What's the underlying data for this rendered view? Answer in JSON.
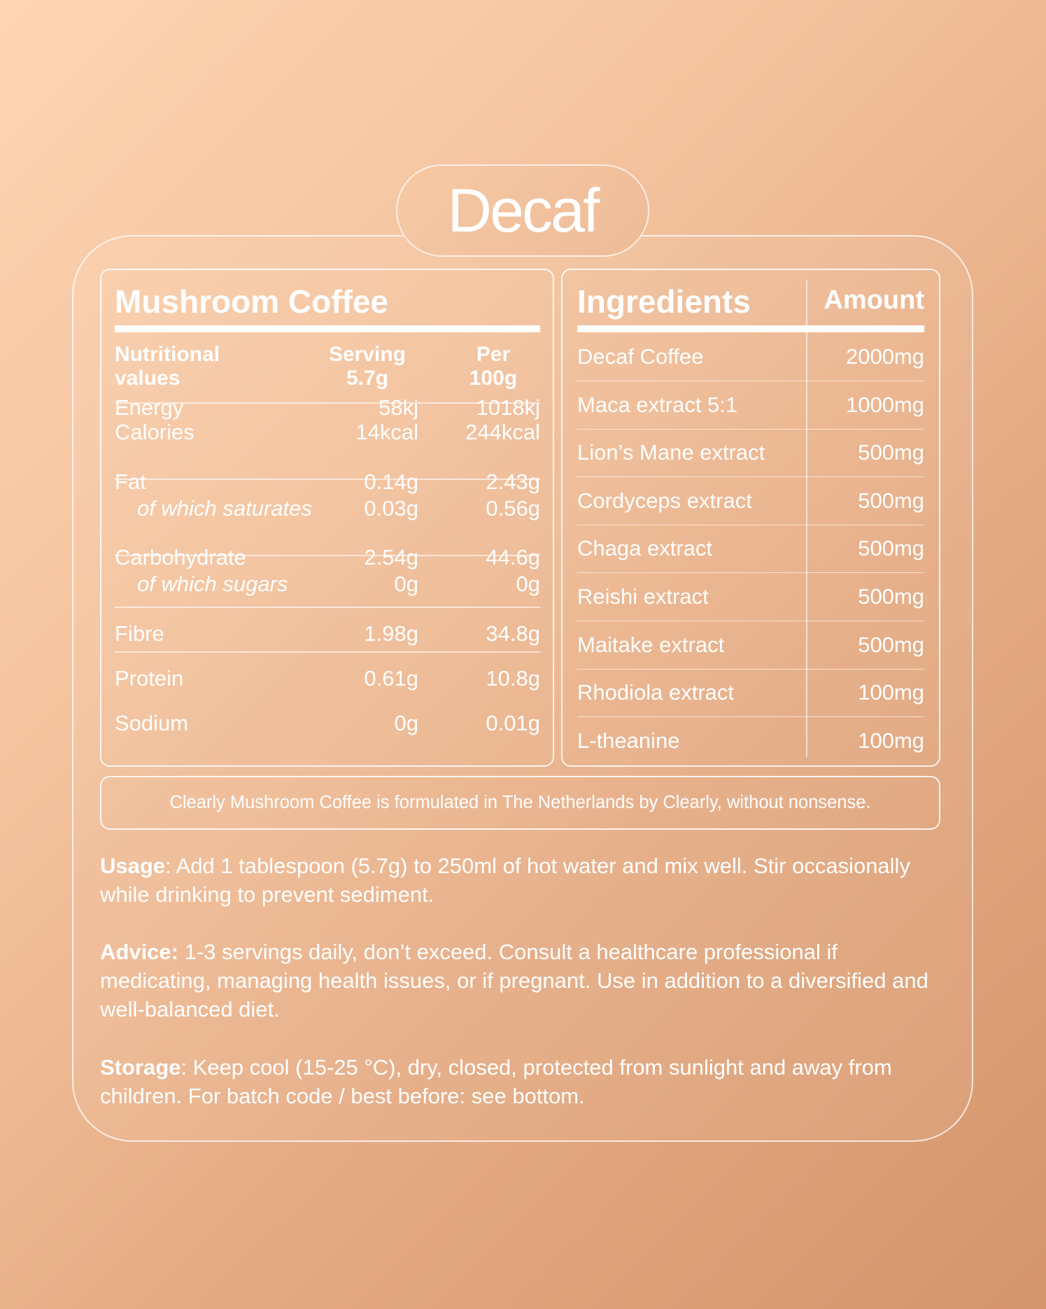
{
  "title": "Decaf",
  "nutrition": {
    "title": "Mushroom Coffee",
    "headers": {
      "name": "Nutritional values",
      "serving": "Serving 5.7g",
      "per100": "Per 100g"
    },
    "groups": [
      [
        {
          "name": "Energy",
          "serving": "58kj",
          "per100": "1018kj"
        },
        {
          "name": "Calories",
          "serving": "14kcal",
          "per100": "244kcal"
        }
      ],
      [
        {
          "name": "Fat",
          "serving": "0.14g",
          "per100": "2.43g"
        },
        {
          "name": "of which saturates",
          "serving": "0.03g",
          "per100": "0.56g",
          "sub": true
        }
      ],
      [
        {
          "name": "Carbohydrate",
          "serving": "2.54g",
          "per100": "44.6g"
        },
        {
          "name": "of which sugars",
          "serving": "0g",
          "per100": "0g",
          "sub": true
        }
      ],
      [
        {
          "name": "Fibre",
          "serving": "1.98g",
          "per100": "34.8g"
        }
      ],
      [
        {
          "name": "Protein",
          "serving": "0.61g",
          "per100": "10.8g"
        }
      ],
      [
        {
          "name": "Sodium",
          "serving": "0g",
          "per100": "0.01g"
        }
      ]
    ]
  },
  "ingredients": {
    "headers": {
      "name": "Ingredients",
      "amount": "Amount"
    },
    "items": [
      {
        "name": "Decaf Coffee",
        "amount": "2000mg"
      },
      {
        "name": "Maca extract 5:1",
        "amount": "1000mg"
      },
      {
        "name": "Lion’s Mane extract",
        "amount": "500mg"
      },
      {
        "name": "Cordyceps extract",
        "amount": "500mg"
      },
      {
        "name": "Chaga extract",
        "amount": "500mg"
      },
      {
        "name": "Reishi extract",
        "amount": "500mg"
      },
      {
        "name": "Maitake extract",
        "amount": "500mg"
      },
      {
        "name": "Rhodiola extract",
        "amount": "100mg"
      },
      {
        "name": "L-theanine",
        "amount": "100mg"
      }
    ]
  },
  "note": "Clearly Mushroom Coffee is formulated in The Netherlands by Clearly, without nonsense.",
  "paragraphs": [
    {
      "label": "Usage",
      "text": ": Add 1 tablespoon (5.7g) to 250ml of hot water and mix well. Stir occasionally while drinking to prevent sediment."
    },
    {
      "label": "Advice:",
      "text": " 1-3 servings daily, don’t exceed. Consult a healthcare professional if medicating, managing health issues, or if pregnant. Use in addition to a diversified and well-balanced diet."
    },
    {
      "label": "Storage",
      "text": ": Keep cool (15-25 °C), dry, closed, protected from sunlight and away from children. For batch code / best before: see bottom."
    }
  ]
}
